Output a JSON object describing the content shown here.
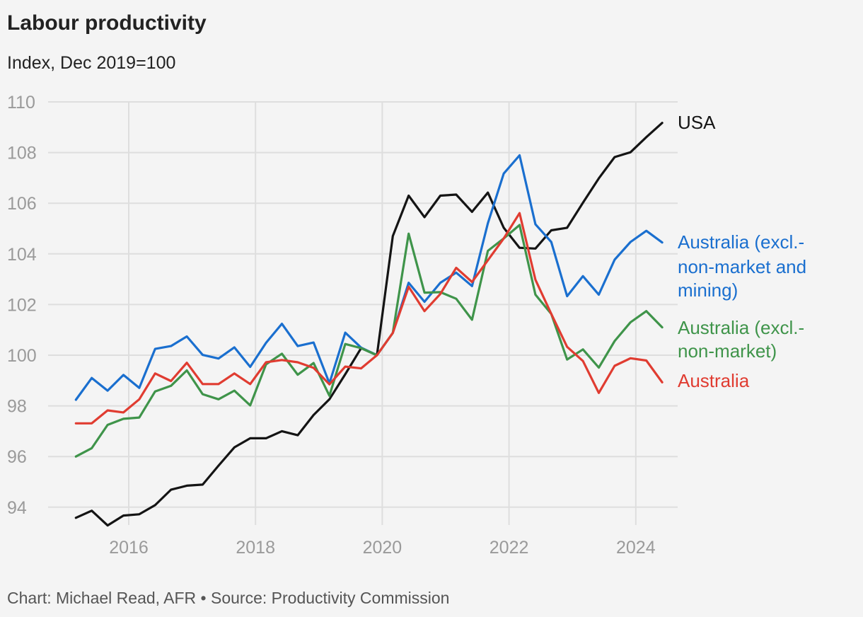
{
  "title": "Labour productivity",
  "subtitle": "Index, Dec 2019=100",
  "footer": "Chart: Michael Read, AFR • Source: Productivity Commission",
  "chart_data": {
    "type": "line",
    "title": "Labour productivity",
    "ylabel": "Index, Dec 2019=100",
    "xlabel": "",
    "ylim": [
      93.5,
      110
    ],
    "yticks": [
      "110",
      "108",
      "106",
      "104",
      "102",
      "100",
      "98",
      "96",
      "94"
    ],
    "xticks": [
      "2016",
      "2018",
      "2020",
      "2022",
      "2024"
    ],
    "grid": true,
    "legend": "direct labels at line ends (right)",
    "x": [
      "2015-03",
      "2015-06",
      "2015-09",
      "2015-12",
      "2016-03",
      "2016-06",
      "2016-09",
      "2016-12",
      "2017-03",
      "2017-06",
      "2017-09",
      "2017-12",
      "2018-03",
      "2018-06",
      "2018-09",
      "2018-12",
      "2019-03",
      "2019-06",
      "2019-09",
      "2019-12",
      "2020-03",
      "2020-06",
      "2020-09",
      "2020-12",
      "2021-03",
      "2021-06",
      "2021-09",
      "2021-12",
      "2022-03",
      "2022-06",
      "2022-09",
      "2022-12",
      "2023-03",
      "2023-06",
      "2023-09",
      "2023-12",
      "2024-03",
      "2024-06"
    ],
    "series": [
      {
        "name": "USA",
        "label_lines": [
          "USA"
        ],
        "color": "#141414",
        "values": [
          93.58,
          93.86,
          93.28,
          93.67,
          93.72,
          94.08,
          94.69,
          94.85,
          94.89,
          95.64,
          96.36,
          96.72,
          96.72,
          97.0,
          96.84,
          97.64,
          98.26,
          99.25,
          100.28,
          100.0,
          104.7,
          106.3,
          105.45,
          106.3,
          106.34,
          105.66,
          106.42,
          105.03,
          104.24,
          104.21,
          104.93,
          105.03,
          106.02,
          106.98,
          107.82,
          108.01,
          108.61,
          109.17
        ]
      },
      {
        "name": "Australia (excl.- non-market and mining)",
        "label_lines": [
          "Australia (excl.-",
          "non-market and",
          "mining)"
        ],
        "color": "#1a6fcf",
        "values": [
          98.24,
          99.1,
          98.6,
          99.22,
          98.71,
          100.25,
          100.36,
          100.74,
          100.01,
          99.87,
          100.31,
          99.54,
          100.49,
          101.24,
          100.36,
          100.5,
          98.89,
          100.89,
          100.3,
          100.0,
          100.88,
          102.86,
          102.11,
          102.86,
          103.26,
          102.73,
          105.21,
          107.17,
          107.89,
          105.17,
          104.47,
          102.33,
          103.12,
          102.39,
          103.77,
          104.47,
          104.91,
          104.45
        ]
      },
      {
        "name": "Australia (excl.- non-market)",
        "label_lines": [
          "Australia (excl.-",
          "non-market)"
        ],
        "color": "#3f944a",
        "values": [
          96.0,
          96.33,
          97.25,
          97.49,
          97.54,
          98.57,
          98.79,
          99.4,
          98.46,
          98.26,
          98.6,
          98.02,
          99.64,
          100.06,
          99.23,
          99.69,
          98.4,
          100.44,
          100.28,
          100.0,
          100.88,
          104.8,
          102.47,
          102.49,
          102.23,
          101.4,
          104.12,
          104.61,
          105.14,
          102.39,
          101.63,
          99.83,
          100.23,
          99.51,
          100.56,
          101.3,
          101.74,
          101.1
        ]
      },
      {
        "name": "Australia",
        "label_lines": [
          "Australia"
        ],
        "color": "#e03c31",
        "values": [
          97.31,
          97.31,
          97.82,
          97.74,
          98.26,
          99.28,
          98.98,
          99.7,
          98.86,
          98.86,
          99.28,
          98.86,
          99.72,
          99.81,
          99.72,
          99.5,
          98.85,
          99.55,
          99.48,
          100.0,
          100.88,
          102.7,
          101.74,
          102.42,
          103.45,
          102.89,
          103.75,
          104.61,
          105.61,
          102.98,
          101.63,
          100.33,
          99.77,
          98.51,
          99.58,
          99.88,
          99.79,
          98.93
        ]
      }
    ]
  }
}
